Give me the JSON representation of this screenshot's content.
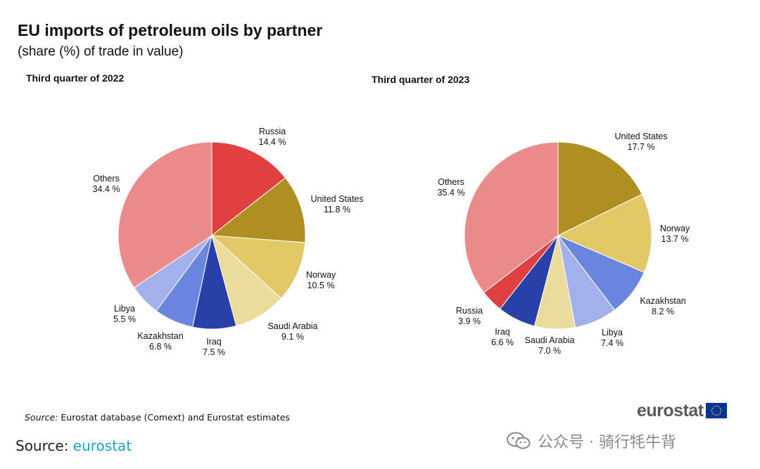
{
  "header": {
    "title": "EU imports of petroleum oils by partner",
    "subtitle": "(share (%) of trade in value)"
  },
  "chart_data": [
    {
      "type": "pie",
      "title": "Third quarter of 2022",
      "slices": [
        {
          "label": "Russia",
          "value": 14.4,
          "value_text": "14.4 %",
          "color": "#e04040"
        },
        {
          "label": "United States",
          "value": 11.8,
          "value_text": "11.8 %",
          "color": "#af8f1f"
        },
        {
          "label": "Norway",
          "value": 10.5,
          "value_text": "10.5 %",
          "color": "#e3c868"
        },
        {
          "label": "Saudi Arabia",
          "value": 9.1,
          "value_text": "9.1 %",
          "color": "#ecdc9c"
        },
        {
          "label": "Iraq",
          "value": 7.5,
          "value_text": "7.5 %",
          "color": "#2940a8"
        },
        {
          "label": "Kazakhstan",
          "value": 6.8,
          "value_text": "6.8 %",
          "color": "#6a85de"
        },
        {
          "label": "Libya",
          "value": 5.5,
          "value_text": "5.5 %",
          "color": "#a2b1ea"
        },
        {
          "label": "Others",
          "value": 34.4,
          "value_text": "34.4 %",
          "color": "#ea8a8a"
        }
      ]
    },
    {
      "type": "pie",
      "title": "Third quarter of 2023",
      "slices": [
        {
          "label": "United States",
          "value": 17.7,
          "value_text": "17.7 %",
          "color": "#af8f1f"
        },
        {
          "label": "Norway",
          "value": 13.7,
          "value_text": "13.7 %",
          "color": "#e3c868"
        },
        {
          "label": "Kazakhstan",
          "value": 8.2,
          "value_text": "8.2 %",
          "color": "#6a85de"
        },
        {
          "label": "Libya",
          "value": 7.4,
          "value_text": "7.4 %",
          "color": "#a2b1ea"
        },
        {
          "label": "Saudi Arabia",
          "value": 7.0,
          "value_text": "7.0 %",
          "color": "#ecdc9c"
        },
        {
          "label": "Iraq",
          "value": 6.6,
          "value_text": "6.6 %",
          "color": "#2940a8"
        },
        {
          "label": "Russia",
          "value": 3.9,
          "value_text": "3.9 %",
          "color": "#e04040"
        },
        {
          "label": "Others",
          "value": 35.4,
          "value_text": "35.4 %",
          "color": "#ea8a8a"
        }
      ]
    }
  ],
  "footer": {
    "source_key": "Source:",
    "source_text": "Eurostat database (Comext) and Eurostat estimates",
    "source_link_prefix": "Source: ",
    "source_link_label": "eurostat",
    "logo_text": "eurostat",
    "watermark_text": "公众号 · 骑行牦牛背"
  },
  "icons": {
    "eu_flag": "eu-flag-icon",
    "watermark": "wechat-icon"
  }
}
